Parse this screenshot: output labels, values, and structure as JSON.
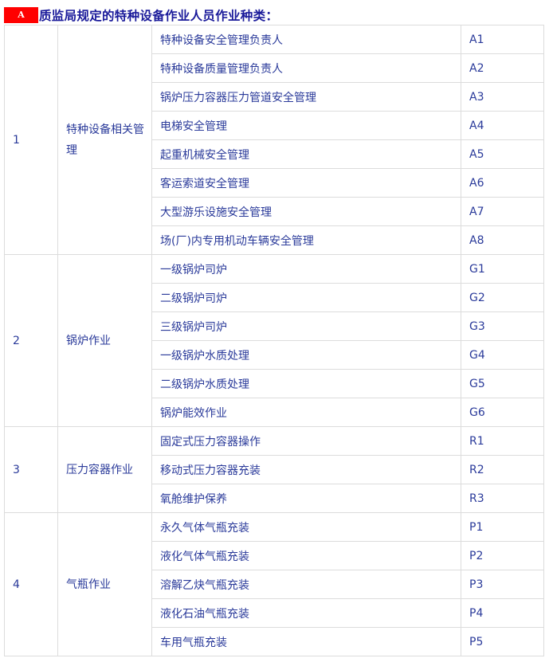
{
  "title": {
    "badge": "A",
    "text": "质监局规定的特种设备作业人员作业种类："
  },
  "groups": [
    {
      "no": "1",
      "category": "特种设备相关管理",
      "items": [
        [
          "特种设备安全管理负责人",
          "A1"
        ],
        [
          "特种设备质量管理负责人",
          "A2"
        ],
        [
          "锅炉压力容器压力管道安全管理",
          "A3"
        ],
        [
          "电梯安全管理",
          "A4"
        ],
        [
          "起重机械安全管理",
          "A5"
        ],
        [
          "客运索道安全管理",
          "A6"
        ],
        [
          "大型游乐设施安全管理",
          "A7"
        ],
        [
          "场(厂)内专用机动车辆安全管理",
          "A8"
        ]
      ]
    },
    {
      "no": "2",
      "category": "锅炉作业",
      "items": [
        [
          "一级锅炉司炉",
          "G1"
        ],
        [
          "二级锅炉司炉",
          "G2"
        ],
        [
          "三级锅炉司炉",
          "G3"
        ],
        [
          "一级锅炉水质处理",
          "G4"
        ],
        [
          "二级锅炉水质处理",
          "G5"
        ],
        [
          "锅炉能效作业",
          "G6"
        ]
      ]
    },
    {
      "no": "3",
      "category": "压力容器作业",
      "items": [
        [
          "固定式压力容器操作",
          "R1"
        ],
        [
          "移动式压力容器充装",
          "R2"
        ],
        [
          "氧舱维护保养",
          "R3"
        ]
      ]
    },
    {
      "no": "4",
      "category": "气瓶作业",
      "items": [
        [
          "永久气体气瓶充装",
          "P1"
        ],
        [
          "液化气体气瓶充装",
          "P2"
        ],
        [
          "溶解乙炔气瓶充装",
          "P3"
        ],
        [
          "液化石油气瓶充装",
          "P4"
        ],
        [
          "车用气瓶充装",
          "P5"
        ]
      ]
    }
  ]
}
